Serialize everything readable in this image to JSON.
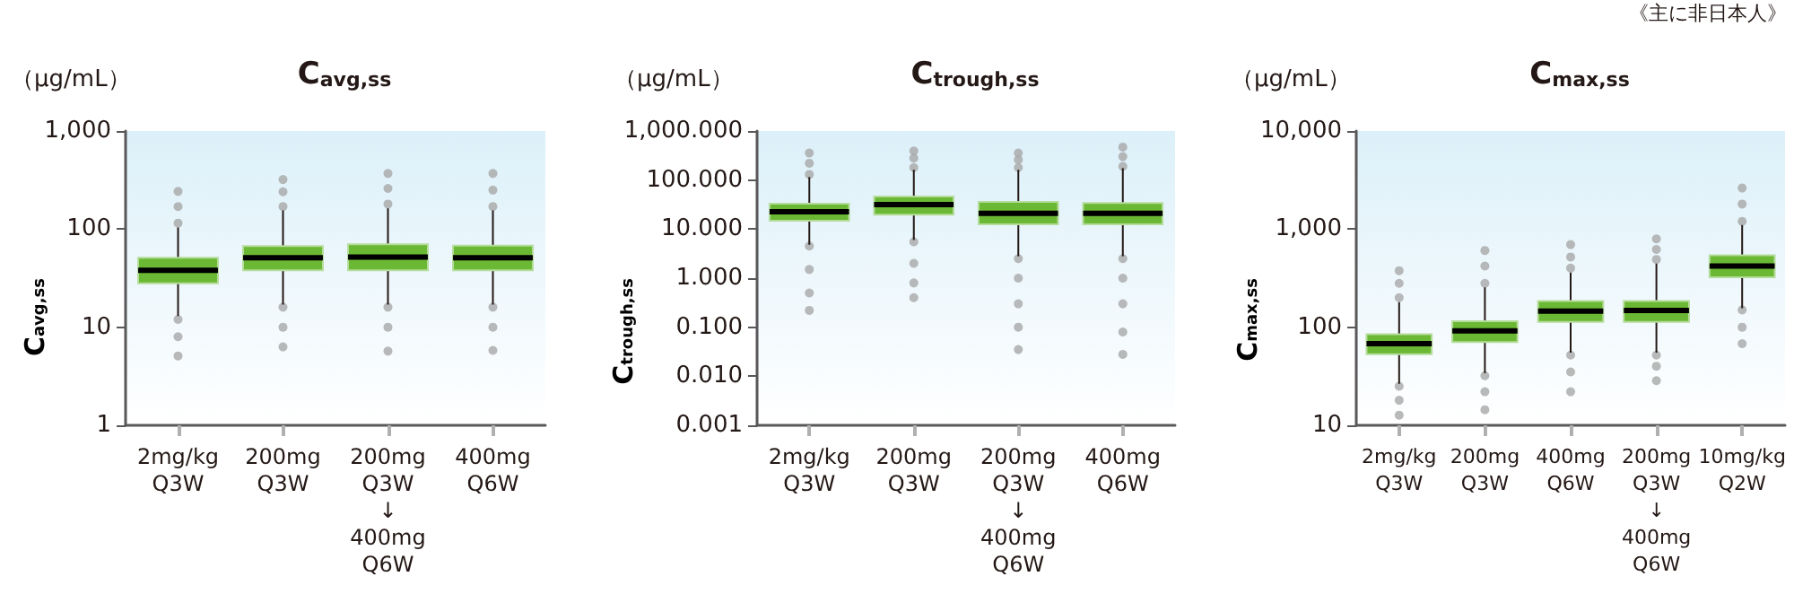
{
  "chart_data": [
    {
      "type": "box",
      "title": "C$_{avg,ss}$",
      "ylabel": "C$_{avg,ss}$",
      "annotations": [
        "（μg/mL）"
      ],
      "categories": [
        "2mg/kg\nQ3W",
        "200mg\nQ3W",
        "200mg\nQ3W\n↓\n400mg\nQ6W",
        "400mg\nQ6W"
      ],
      "color": "#6ab833",
      "log": true,
      "grid": false,
      "ylim": [
        1,
        1000
      ],
      "yticks": [
        1,
        10,
        100,
        "1,000"
      ],
      "boxes": [
        {
          "low": 13,
          "q1": 28,
          "median": 38,
          "q3": 51,
          "high": 104,
          "outliers": [
            5.1,
            8,
            12,
            115,
            170,
            242
          ]
        },
        {
          "low": 17,
          "q1": 38,
          "median": 51,
          "q3": 67,
          "high": 155,
          "outliers": [
            6.3,
            10,
            16,
            170,
            240,
            320
          ]
        },
        {
          "low": 17,
          "q1": 38,
          "median": 52,
          "q3": 70,
          "high": 163,
          "outliers": [
            5.7,
            10,
            16,
            180,
            260,
            369
          ]
        },
        {
          "low": 17,
          "q1": 38,
          "median": 51,
          "q3": 68,
          "high": 155,
          "outliers": [
            5.8,
            10,
            16,
            170,
            250,
            369
          ]
        }
      ]
    },
    {
      "type": "box",
      "title": "C$_{trough,ss}$",
      "ylabel": "C$_{trough,ss}$",
      "annotations": [
        "（μg/mL）"
      ],
      "categories": [
        "2mg/kg\nQ3W",
        "200mg\nQ3W",
        "200mg\nQ3W\n↓\n400mg\nQ6W",
        "400mg\nQ6W"
      ],
      "color": "#6ab833",
      "log": true,
      "grid": false,
      "ylim": [
        0.001,
        1000
      ],
      "yticks": [
        {
          "value": 0.001,
          "label": "0.001"
        },
        {
          "value": 0.01,
          "label": "0.010"
        },
        {
          "value": 0.1,
          "label": "0.100"
        },
        {
          "value": 1,
          "label": "1.000"
        },
        {
          "value": 10,
          "label": "10.000"
        },
        {
          "value": 100,
          "label": "100.000"
        },
        {
          "value": 1000,
          "label": "1,000.000"
        }
      ],
      "boxes": [
        {
          "low": 4.8,
          "q1": 14.8,
          "median": 22.6,
          "q3": 33,
          "high": 115,
          "outliers": [
            0.22,
            0.5,
            1.5,
            4.5,
            130,
            220,
            355
          ]
        },
        {
          "low": 6,
          "q1": 19.6,
          "median": 31.6,
          "q3": 46,
          "high": 162,
          "outliers": [
            0.4,
            0.8,
            2,
            5.5,
            180,
            280,
            390
          ]
        },
        {
          "low": 2.8,
          "q1": 12.5,
          "median": 21,
          "q3": 36,
          "high": 162,
          "outliers": [
            0.035,
            0.1,
            0.3,
            1,
            2.5,
            180,
            260,
            355
          ]
        },
        {
          "low": 2.8,
          "q1": 12.5,
          "median": 21,
          "q3": 34,
          "high": 175,
          "outliers": [
            0.028,
            0.08,
            0.3,
            1,
            2.5,
            190,
            300,
            470
          ]
        }
      ]
    },
    {
      "type": "box",
      "title": "C$_{max,ss}$",
      "ylabel": "C$_{max,ss}$",
      "annotations": [
        "（μg/mL）",
        "《主に非日本人》"
      ],
      "categories": [
        "2mg/kg\nQ3W",
        "200mg\nQ3W",
        "400mg\nQ6W",
        "200mg\nQ3W\n↓\n400mg\nQ6W",
        "10mg/kg\nQ2W"
      ],
      "color": "#6ab833",
      "log": true,
      "grid": false,
      "ylim": [
        10,
        10000
      ],
      "yticks": [
        10,
        100,
        "1,000",
        "10,000"
      ],
      "boxes": [
        {
          "low": 26.5,
          "q1": 53,
          "median": 68,
          "q3": 85,
          "high": 180,
          "outliers": [
            12.7,
            18,
            25,
            200,
            280,
            377
          ]
        },
        {
          "low": 34,
          "q1": 70.6,
          "median": 92,
          "q3": 115,
          "high": 255,
          "outliers": [
            14.4,
            22,
            32,
            280,
            420,
            605
          ]
        },
        {
          "low": 55,
          "q1": 113,
          "median": 146,
          "q3": 185,
          "high": 360,
          "outliers": [
            22,
            35,
            52,
            400,
            520,
            695
          ]
        },
        {
          "low": 55,
          "q1": 113,
          "median": 148,
          "q3": 185,
          "high": 445,
          "outliers": [
            28.5,
            40,
            52,
            490,
            620,
            795
          ]
        },
        {
          "low": 156,
          "q1": 323,
          "median": 421,
          "q3": 541,
          "high": 1100,
          "outliers": [
            68,
            100,
            150,
            1200,
            1800,
            2620
          ]
        }
      ]
    }
  ]
}
